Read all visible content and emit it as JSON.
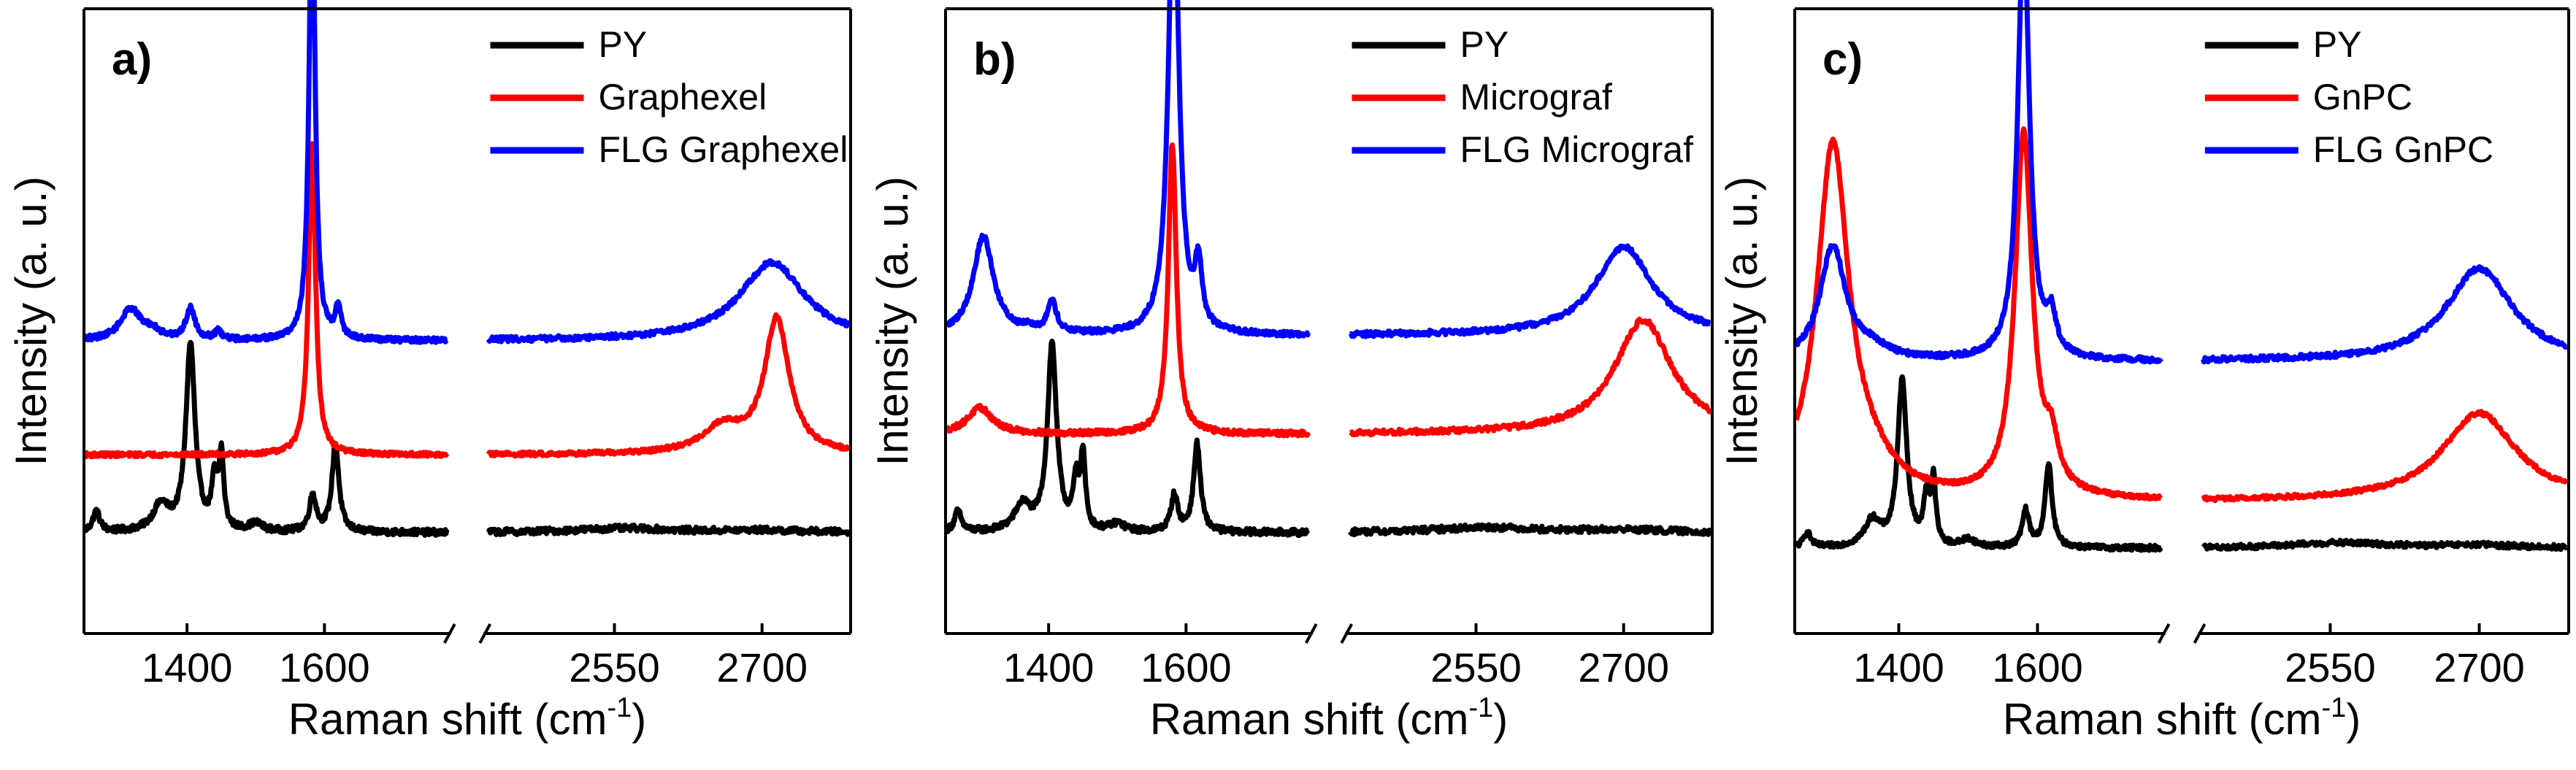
{
  "chart_data": [
    {
      "type": "line",
      "panel_label": "a)",
      "xlabel": "Raman shift (cm",
      "xlabel_sup": "-1",
      "xlabel_close": ")",
      "ylabel": "Intensity (a. u.)",
      "x_axis_break": true,
      "xlim_low": [
        1250,
        1780
      ],
      "xlim_high": [
        2420,
        2790
      ],
      "xticks": [
        1400,
        1600,
        2550,
        2700
      ],
      "x_tick_labels": [
        "1400",
        "1600",
        "2550",
        "2700"
      ],
      "y_ticks_shown": false,
      "legend_position": "top-right",
      "series": [
        {
          "name": "PY",
          "color": "#000000",
          "baseline": 0.05,
          "noise": 0.006,
          "peaks": [
            [
              1268,
              0.04,
              6
            ],
            [
              1362,
              0.05,
              14
            ],
            [
              1405,
              0.36,
              8
            ],
            [
              1440,
              0.09,
              5
            ],
            [
              1450,
              0.14,
              4
            ],
            [
              1500,
              0.015,
              12
            ],
            [
              1583,
              0.07,
              6
            ],
            [
              1616,
              0.17,
              6
            ],
            [
              2560,
              0.008,
              60
            ],
            [
              2700,
              0.004,
              50
            ]
          ]
        },
        {
          "name": "Graphexel",
          "color": "#ff0000",
          "baseline": 0.2,
          "noise": 0.004,
          "peaks": [
            [
              1582,
              0.6,
              6
            ],
            [
              2660,
              0.05,
              25
            ],
            [
              2715,
              0.26,
              15
            ]
          ]
        },
        {
          "name": "FLG Graphexel",
          "color": "#0000ff",
          "baseline": 0.42,
          "noise": 0.005,
          "peaks": [
            [
              1318,
              0.06,
              18
            ],
            [
              1350,
              0.015,
              14
            ],
            [
              1405,
              0.06,
              8
            ],
            [
              1445,
              0.015,
              6
            ],
            [
              1582,
              0.92,
              5
            ],
            [
              1620,
              0.06,
              5
            ],
            [
              2710,
              0.15,
              40
            ]
          ]
        }
      ]
    },
    {
      "type": "line",
      "panel_label": "b)",
      "xlabel": "Raman shift (cm",
      "xlabel_sup": "-1",
      "xlabel_close": ")",
      "ylabel": "Intensity (a. u.)",
      "x_axis_break": true,
      "xlim_low": [
        1250,
        1780
      ],
      "xlim_high": [
        2420,
        2790
      ],
      "xticks": [
        1400,
        1600,
        2550,
        2700
      ],
      "x_tick_labels": [
        "1400",
        "1600",
        "2550",
        "2700"
      ],
      "y_ticks_shown": false,
      "legend_position": "top-right",
      "series": [
        {
          "name": "PY",
          "color": "#000000",
          "baseline": 0.05,
          "noise": 0.006,
          "peaks": [
            [
              1268,
              0.04,
              6
            ],
            [
              1362,
              0.05,
              14
            ],
            [
              1405,
              0.36,
              8
            ],
            [
              1440,
              0.09,
              5
            ],
            [
              1450,
              0.14,
              4
            ],
            [
              1500,
              0.015,
              12
            ],
            [
              1583,
              0.07,
              6
            ],
            [
              1616,
              0.17,
              6
            ],
            [
              2560,
              0.01,
              60
            ],
            [
              2700,
              0.005,
              50
            ]
          ]
        },
        {
          "name": "Micrograf",
          "color": "#ff0000",
          "baseline": 0.24,
          "noise": 0.005,
          "peaks": [
            [
              1300,
              0.05,
              22
            ],
            [
              1580,
              0.56,
              7
            ],
            [
              2720,
              0.22,
              35
            ]
          ]
        },
        {
          "name": "FLG Micrograf",
          "color": "#0000ff",
          "baseline": 0.43,
          "noise": 0.005,
          "peaks": [
            [
              1305,
              0.19,
              18
            ],
            [
              1370,
              0.01,
              10
            ],
            [
              1405,
              0.06,
              8
            ],
            [
              1582,
              0.9,
              9
            ],
            [
              1618,
              0.12,
              6
            ],
            [
              2700,
              0.17,
              35
            ]
          ]
        }
      ]
    },
    {
      "type": "line",
      "panel_label": "c)",
      "xlabel": "Raman shift (cm",
      "xlabel_sup": "-1",
      "xlabel_close": ")",
      "ylabel": "Intensity (a. u.)",
      "x_axis_break": true,
      "xlim_low": [
        1250,
        1780
      ],
      "xlim_high": [
        2420,
        2790
      ],
      "xticks": [
        1400,
        1600,
        2550,
        2700
      ],
      "x_tick_labels": [
        "1400",
        "1600",
        "2550",
        "2700"
      ],
      "y_ticks_shown": false,
      "legend_position": "top-right",
      "series": [
        {
          "name": "PY",
          "color": "#000000",
          "baseline": 0.02,
          "noise": 0.005,
          "peaks": [
            [
              1268,
              0.03,
              6
            ],
            [
              1362,
              0.05,
              14
            ],
            [
              1405,
              0.32,
              8
            ],
            [
              1440,
              0.09,
              5
            ],
            [
              1450,
              0.12,
              4
            ],
            [
              1500,
              0.015,
              12
            ],
            [
              1583,
              0.07,
              6
            ],
            [
              1616,
              0.16,
              6
            ],
            [
              2560,
              0.01,
              60
            ],
            [
              2700,
              0.005,
              50
            ]
          ]
        },
        {
          "name": "GnPC",
          "color": "#ff0000",
          "baseline": 0.11,
          "noise": 0.004,
          "peaks": [
            [
              1305,
              0.68,
              28
            ],
            [
              1360,
              0.04,
              40
            ],
            [
              1580,
              0.7,
              15
            ],
            [
              1620,
              0.08,
              12
            ],
            [
              2700,
              0.17,
              45
            ]
          ]
        },
        {
          "name": "FLG GnPC",
          "color": "#0000ff",
          "baseline": 0.38,
          "noise": 0.005,
          "peaks": [
            [
              1305,
              0.22,
              22
            ],
            [
              1360,
              0.02,
              30
            ],
            [
              1580,
              0.84,
              10
            ],
            [
              1620,
              0.07,
              8
            ],
            [
              2700,
              0.18,
              40
            ]
          ]
        }
      ]
    }
  ]
}
